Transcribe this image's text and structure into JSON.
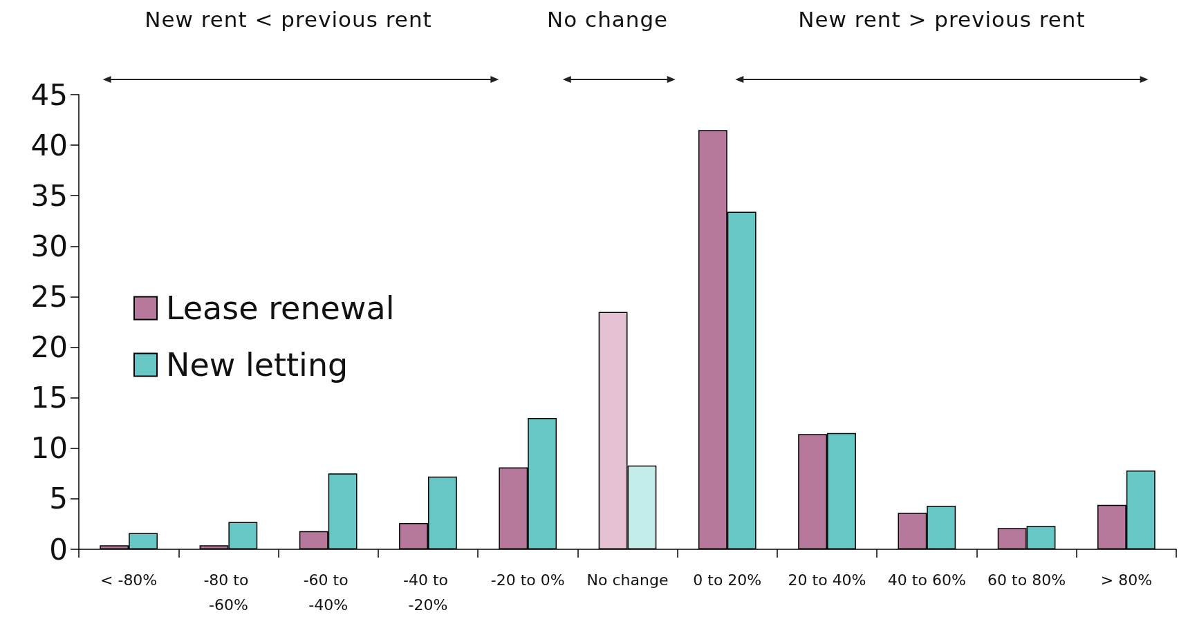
{
  "chart_data": {
    "type": "bar",
    "categories": [
      "< -80%",
      "-80 to -60%",
      "-60 to -40%",
      "-40 to -20%",
      "-20 to 0%",
      "No change",
      "0 to 20%",
      "20 to 40%",
      "40 to 60%",
      "60 to 80%",
      "> 80%"
    ],
    "series": [
      {
        "name": "Lease renewal",
        "color": "#b7799b",
        "colors": [
          "#b7799b",
          "#b7799b",
          "#b7799b",
          "#b7799b",
          "#b7799b",
          "#e4c0d3",
          "#b7799b",
          "#b7799b",
          "#b7799b",
          "#b7799b",
          "#b7799b"
        ],
        "values": [
          0.4,
          0.4,
          1.8,
          2.6,
          8.1,
          23.5,
          41.5,
          11.4,
          3.6,
          2.1,
          4.4
        ]
      },
      {
        "name": "New letting",
        "color": "#66c7c4",
        "colors": [
          "#66c7c4",
          "#66c7c4",
          "#66c7c4",
          "#66c7c4",
          "#66c7c4",
          "#c4ece9",
          "#66c7c4",
          "#66c7c4",
          "#66c7c4",
          "#66c7c4",
          "#66c7c4"
        ],
        "values": [
          1.6,
          2.7,
          7.5,
          7.2,
          13.0,
          8.3,
          33.4,
          11.5,
          4.3,
          2.3,
          7.8
        ]
      }
    ],
    "ylim": [
      0,
      45
    ],
    "yticks": [
      0,
      5,
      10,
      15,
      20,
      25,
      30,
      35,
      40,
      45
    ],
    "grid": false,
    "legend": "left",
    "annotations": [
      "New rent < previous rent",
      "No change",
      "New rent > previous rent"
    ]
  }
}
